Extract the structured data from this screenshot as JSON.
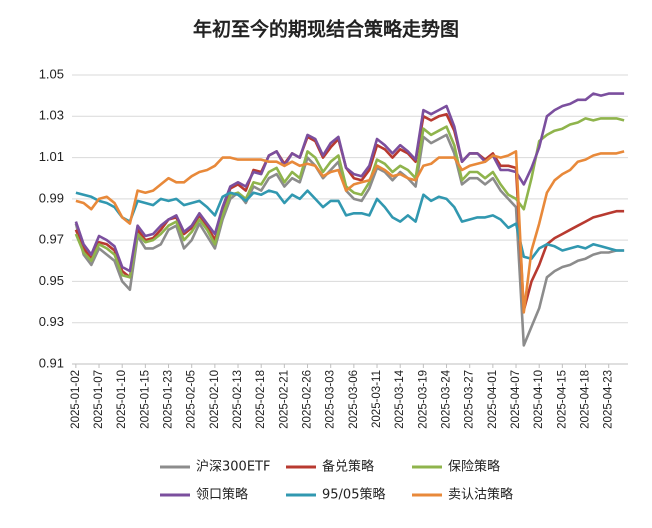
{
  "chart_data": {
    "type": "line",
    "title": "年初至今的期现结合策略走势图",
    "categories": [
      "2025-01-02",
      null,
      null,
      "2025-01-07",
      null,
      null,
      "2025-01-10",
      null,
      null,
      "2025-01-15",
      null,
      null,
      "2025-01-23",
      null,
      null,
      "2025-02-05",
      null,
      null,
      "2025-02-10",
      null,
      null,
      "2025-02-13",
      null,
      null,
      "2025-02-18",
      null,
      null,
      "2025-02-21",
      null,
      null,
      "2025-02-26",
      null,
      null,
      "2025-03-03",
      null,
      null,
      "2025-03-06",
      null,
      null,
      "2025-03-11",
      null,
      null,
      "2025-03-14",
      null,
      null,
      "2025-03-19",
      null,
      null,
      "2025-03-24",
      null,
      null,
      "2025-03-27",
      null,
      null,
      "2025-04-01",
      null,
      null,
      "2025-04-07",
      null,
      null,
      "2025-04-10",
      null,
      null,
      "2025-04-15",
      null,
      null,
      "2025-04-18",
      null,
      null,
      "2025-04-23",
      null,
      null
    ],
    "series": [
      {
        "name": "沪深300ETF",
        "color": "#8c8c8c",
        "values": [
          0.978,
          0.963,
          0.958,
          0.966,
          0.963,
          0.96,
          0.95,
          0.946,
          0.972,
          0.966,
          0.966,
          0.968,
          0.975,
          0.977,
          0.966,
          0.97,
          0.978,
          0.972,
          0.966,
          0.98,
          0.99,
          0.993,
          0.988,
          0.996,
          0.994,
          1.0,
          1.002,
          0.996,
          1.0,
          0.998,
          1.01,
          1.006,
          1.0,
          1.004,
          1.008,
          0.994,
          0.99,
          0.989,
          0.995,
          1.005,
          1.003,
          0.999,
          1.003,
          1.0,
          0.996,
          1.02,
          1.017,
          1.019,
          1.021,
          1.012,
          0.997,
          1.0,
          1.0,
          0.997,
          1.0,
          0.994,
          0.99,
          0.986,
          0.919,
          0.928,
          0.937,
          0.952,
          0.955,
          0.957,
          0.958,
          0.96,
          0.961,
          0.963,
          0.964,
          0.964,
          0.965,
          0.965
        ]
      },
      {
        "name": "备兑策略",
        "color": "#b83a30",
        "values": [
          0.975,
          0.966,
          0.961,
          0.969,
          0.968,
          0.965,
          0.955,
          0.952,
          0.975,
          0.97,
          0.971,
          0.975,
          0.98,
          0.981,
          0.973,
          0.976,
          0.982,
          0.977,
          0.97,
          0.985,
          0.995,
          0.997,
          0.994,
          1.004,
          1.003,
          1.011,
          1.013,
          1.007,
          1.012,
          1.01,
          1.02,
          1.018,
          1.01,
          1.015,
          1.019,
          1.005,
          1.0,
          0.999,
          1.004,
          1.016,
          1.014,
          1.01,
          1.014,
          1.012,
          1.008,
          1.03,
          1.028,
          1.03,
          1.031,
          1.023,
          1.008,
          1.012,
          1.012,
          1.009,
          1.012,
          1.006,
          1.006,
          1.005,
          0.936,
          0.95,
          0.958,
          0.968,
          0.971,
          0.973,
          0.975,
          0.977,
          0.979,
          0.981,
          0.982,
          0.983,
          0.984,
          0.984
        ]
      },
      {
        "name": "保险策略",
        "color": "#8fb44c",
        "values": [
          0.973,
          0.964,
          0.96,
          0.968,
          0.966,
          0.963,
          0.953,
          0.952,
          0.973,
          0.969,
          0.97,
          0.973,
          0.977,
          0.979,
          0.97,
          0.974,
          0.98,
          0.975,
          0.968,
          0.982,
          0.992,
          0.993,
          0.99,
          0.998,
          0.997,
          1.003,
          1.005,
          0.998,
          1.003,
          1.0,
          1.013,
          1.01,
          1.003,
          1.008,
          1.011,
          0.996,
          0.993,
          0.992,
          0.998,
          1.009,
          1.007,
          1.003,
          1.006,
          1.004,
          1.0,
          1.024,
          1.021,
          1.023,
          1.025,
          1.016,
          0.999,
          1.003,
          1.003,
          1.0,
          1.003,
          0.997,
          0.992,
          0.99,
          0.985,
          1.0,
          1.018,
          1.021,
          1.023,
          1.024,
          1.026,
          1.027,
          1.029,
          1.028,
          1.029,
          1.029,
          1.029,
          1.028
        ]
      },
      {
        "name": "领口策略",
        "color": "#7b4f9e",
        "values": [
          0.979,
          0.968,
          0.963,
          0.972,
          0.97,
          0.967,
          0.957,
          0.955,
          0.977,
          0.972,
          0.973,
          0.977,
          0.98,
          0.982,
          0.974,
          0.977,
          0.983,
          0.978,
          0.973,
          0.986,
          0.996,
          0.998,
          0.996,
          1.003,
          1.002,
          1.011,
          1.013,
          1.006,
          1.012,
          1.01,
          1.021,
          1.019,
          1.011,
          1.017,
          1.02,
          1.005,
          1.002,
          1.001,
          1.006,
          1.019,
          1.016,
          1.012,
          1.016,
          1.013,
          1.009,
          1.033,
          1.031,
          1.033,
          1.035,
          1.025,
          1.008,
          1.012,
          1.012,
          1.008,
          1.011,
          1.004,
          1.004,
          1.003,
          0.997,
          1.005,
          1.015,
          1.03,
          1.033,
          1.035,
          1.036,
          1.038,
          1.038,
          1.041,
          1.04,
          1.041,
          1.041,
          1.041
        ]
      },
      {
        "name": "95/05策略",
        "color": "#3198b0",
        "values": [
          0.993,
          0.992,
          0.991,
          0.989,
          0.988,
          0.986,
          0.981,
          0.979,
          0.989,
          0.988,
          0.987,
          0.99,
          0.989,
          0.99,
          0.987,
          0.988,
          0.989,
          0.986,
          0.982,
          0.991,
          0.993,
          0.992,
          0.989,
          0.993,
          0.992,
          0.994,
          0.993,
          0.988,
          0.992,
          0.99,
          0.994,
          0.99,
          0.986,
          0.989,
          0.989,
          0.982,
          0.983,
          0.983,
          0.982,
          0.99,
          0.986,
          0.981,
          0.979,
          0.982,
          0.979,
          0.992,
          0.989,
          0.991,
          0.99,
          0.986,
          0.979,
          0.98,
          0.981,
          0.981,
          0.982,
          0.98,
          0.976,
          0.978,
          0.962,
          0.961,
          0.966,
          0.968,
          0.967,
          0.965,
          0.966,
          0.967,
          0.966,
          0.968,
          0.967,
          0.966,
          0.965,
          0.965
        ]
      },
      {
        "name": "卖认沽策略",
        "color": "#e8893a",
        "values": [
          0.989,
          0.988,
          0.985,
          0.99,
          0.991,
          0.988,
          0.981,
          0.978,
          0.994,
          0.993,
          0.994,
          0.997,
          1.0,
          0.998,
          0.998,
          1.001,
          1.003,
          1.004,
          1.006,
          1.01,
          1.01,
          1.009,
          1.009,
          1.009,
          1.009,
          1.008,
          1.008,
          1.006,
          1.008,
          1.006,
          1.007,
          1.006,
          1.001,
          1.003,
          1.004,
          0.994,
          0.997,
          0.998,
          0.999,
          1.006,
          1.004,
          1.001,
          1.002,
          1.0,
          0.999,
          1.006,
          1.007,
          1.01,
          1.01,
          1.01,
          1.004,
          1.006,
          1.007,
          1.008,
          1.011,
          1.01,
          1.011,
          1.013,
          0.935,
          0.965,
          0.978,
          0.993,
          0.999,
          1.002,
          1.004,
          1.008,
          1.009,
          1.011,
          1.012,
          1.012,
          1.012,
          1.013
        ]
      }
    ],
    "ylim": [
      0.91,
      1.05
    ],
    "yticks": [
      0.91,
      0.93,
      0.95,
      0.97,
      0.99,
      1.01,
      1.03,
      1.05
    ],
    "grid": true
  }
}
